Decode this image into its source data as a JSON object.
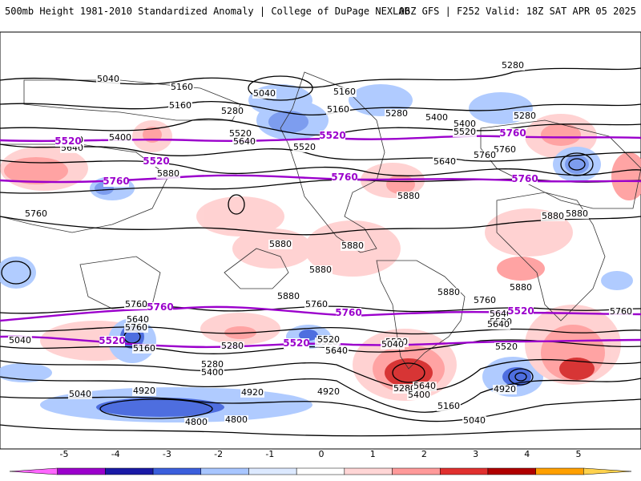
{
  "header": {
    "left": "500mb Height 1981-2010 Standardized Anomaly | College of DuPage NEXLAB",
    "right": "06Z GFS | F252 Valid: 18Z SAT APR 05 2025"
  },
  "map": {
    "projection": "global cylindrical",
    "layers": [
      "standardized-anomaly-shading",
      "500mb-height-contours",
      "5520-5760-highlight-contours",
      "coastlines-and-borders"
    ],
    "contour_labels": [
      "5040",
      "5160",
      "5040",
      "5160",
      "5280",
      "5160",
      "5280",
      "5160",
      "5280",
      "5400",
      "5520",
      "5280",
      "5400",
      "5520",
      "5640",
      "5400",
      "5520",
      "5640",
      "5760",
      "5640",
      "5520",
      "5760",
      "5880",
      "5760",
      "5880",
      "5880",
      "5880",
      "5880",
      "5880",
      "5880",
      "5880",
      "5880",
      "5880",
      "5760",
      "5760",
      "5760",
      "5760",
      "5640",
      "5520",
      "5640",
      "5760",
      "5520",
      "5160",
      "5040",
      "5280",
      "5400",
      "5280",
      "5520",
      "5640",
      "5520",
      "5160",
      "5040",
      "5640",
      "5400",
      "5280",
      "5640",
      "5520",
      "5040",
      "4920",
      "4920",
      "4800",
      "4800",
      "4920",
      "4920",
      "5160",
      "5040"
    ],
    "highlight_labels": [
      "5520",
      "5520",
      "5520",
      "5760",
      "5760",
      "5760",
      "5760",
      "5760",
      "5760",
      "5520",
      "5520",
      "5520"
    ]
  },
  "colorbar": {
    "ticks": [
      "-5",
      "-4",
      "-3",
      "-2",
      "-1",
      "0",
      "1",
      "2",
      "3",
      "4",
      "5"
    ],
    "colors": [
      "#ff66ff",
      "#9b00cc",
      "#1a1aa6",
      "#3b5fdc",
      "#a8c6ff",
      "#dce9ff",
      "#ffffff",
      "#ffd6d6",
      "#ff9a9a",
      "#e0302f",
      "#b00000",
      "#ffa000",
      "#ffd24d"
    ]
  }
}
